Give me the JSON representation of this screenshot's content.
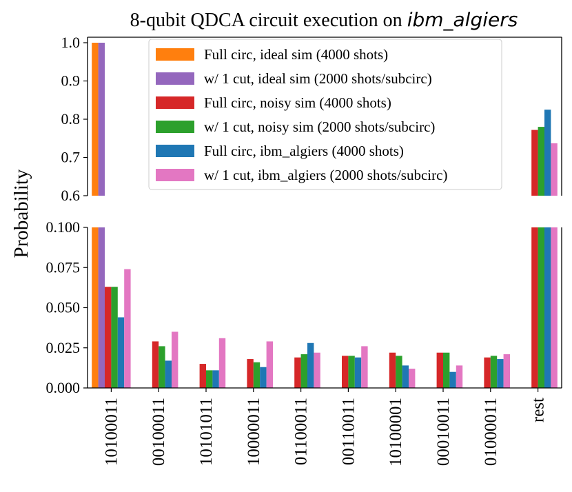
{
  "chart_data": {
    "type": "bar",
    "title_prefix": "8-qubit QDCA circuit execution on ",
    "title_device": "ibm_algiers",
    "ylabel": "Probability",
    "xlabel": "",
    "categories": [
      "10100011",
      "00100011",
      "10101011",
      "10000011",
      "01100011",
      "00110011",
      "10100001",
      "00010011",
      "01000011",
      "rest"
    ],
    "broken_axis": {
      "upper": {
        "ylim": [
          0.6,
          1.0
        ],
        "ticks": [
          "0.6",
          "0.7",
          "0.8",
          "0.9",
          "1.0"
        ]
      },
      "lower": {
        "ylim": [
          0.0,
          0.1
        ],
        "ticks": [
          "0.000",
          "0.025",
          "0.050",
          "0.075",
          "0.100"
        ]
      }
    },
    "series": [
      {
        "name": "Full circ, ideal sim (4000 shots)",
        "color": "#ff7f0e",
        "values": [
          1.0,
          0,
          0,
          0,
          0,
          0,
          0,
          0,
          0,
          0
        ]
      },
      {
        "name": "w/ 1 cut, ideal sim (2000 shots/subcirc)",
        "color": "#9467bd",
        "values": [
          1.0,
          0,
          0,
          0,
          0,
          0,
          0,
          0,
          0,
          0
        ]
      },
      {
        "name": "Full circ, noisy sim (4000 shots)",
        "color": "#d62728",
        "values": [
          0.063,
          0.029,
          0.015,
          0.018,
          0.019,
          0.02,
          0.022,
          0.022,
          0.019,
          0.772
        ]
      },
      {
        "name": "w/ 1 cut, noisy sim (2000 shots/subcirc)",
        "color": "#2ca02c",
        "values": [
          0.063,
          0.026,
          0.011,
          0.016,
          0.021,
          0.02,
          0.02,
          0.022,
          0.02,
          0.78
        ]
      },
      {
        "name": "Full circ, ibm_algiers (4000 shots)",
        "color": "#1f77b4",
        "values": [
          0.044,
          0.017,
          0.011,
          0.013,
          0.028,
          0.019,
          0.014,
          0.01,
          0.018,
          0.825
        ]
      },
      {
        "name": "w/ 1 cut, ibm_algiers (2000 shots/subcirc)",
        "color": "#e377c2",
        "values": [
          0.074,
          0.035,
          0.031,
          0.029,
          0.022,
          0.026,
          0.012,
          0.014,
          0.021,
          0.737
        ]
      }
    ],
    "legend_location": "upper-center",
    "grid": false
  }
}
